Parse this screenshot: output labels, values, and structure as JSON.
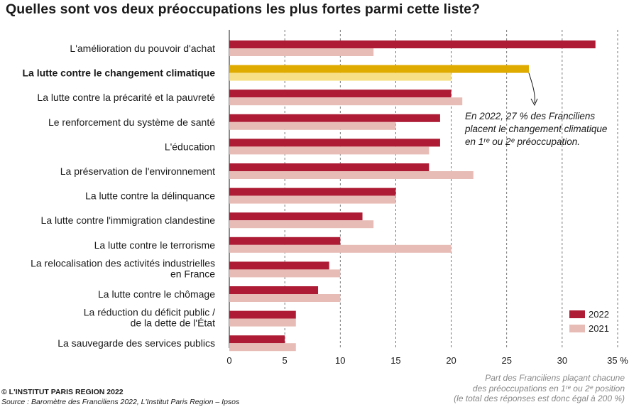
{
  "title": "Quelles sont vos deux préoccupations les plus fortes parmi cette liste?",
  "annotation": [
    "En 2022, 27 % des Franciliens",
    "placent le changement climatique",
    "en 1ʳᵉ ou 2ᵉ préoccupation."
  ],
  "axis_note": [
    "Part des Franciliens plaçant chacune",
    "des préoccupations en 1ʳᵉ ou 2ᵉ position",
    "(le total des réponses est donc égal à 200 %)"
  ],
  "footer": {
    "copyright": "© L'INSTITUT PARIS REGION 2022",
    "source": "Source : Baromètre des Franciliens 2022, L'Institut Paris Region – Ipsos"
  },
  "colors": {
    "s2022": "#ad1c34",
    "s2021": "#e8bcb6",
    "hl2022": "#e0ab00",
    "hl2021": "#f6df86",
    "grid": "#555555"
  },
  "chart_data": {
    "type": "bar",
    "orientation": "horizontal",
    "categories": [
      [
        "L'amélioration du pouvoir d'achat"
      ],
      [
        "La lutte contre le changement climatique"
      ],
      [
        "La lutte contre la précarité et la pauvreté"
      ],
      [
        "Le renforcement du système de santé"
      ],
      [
        "L'éducation"
      ],
      [
        "La préservation de l'environnement"
      ],
      [
        "La lutte contre la délinquance"
      ],
      [
        "La lutte contre l'immigration clandestine"
      ],
      [
        "La lutte contre le terrorisme"
      ],
      [
        "La relocalisation des activités industrielles",
        "en France"
      ],
      [
        "La lutte contre le chômage"
      ],
      [
        "La réduction du déficit public /",
        "de la dette de l'État"
      ],
      [
        "La sauvegarde des services publics"
      ]
    ],
    "highlight_index": 1,
    "series": [
      {
        "name": "2022",
        "values": [
          33,
          27,
          20,
          19,
          19,
          18,
          15,
          12,
          10,
          9,
          8,
          6,
          5
        ]
      },
      {
        "name": "2021",
        "values": [
          13,
          20,
          21,
          15,
          18,
          22,
          15,
          13,
          20,
          10,
          10,
          6,
          6
        ]
      }
    ],
    "x_ticks": [
      0,
      5,
      10,
      15,
      20,
      25,
      30,
      35
    ],
    "x_tick_labels": [
      "0",
      "5",
      "10",
      "15",
      "20",
      "25",
      "30",
      "35 %"
    ],
    "xlim": [
      0,
      35
    ],
    "grid": "vertical dashed",
    "legend": "bottom-right"
  }
}
